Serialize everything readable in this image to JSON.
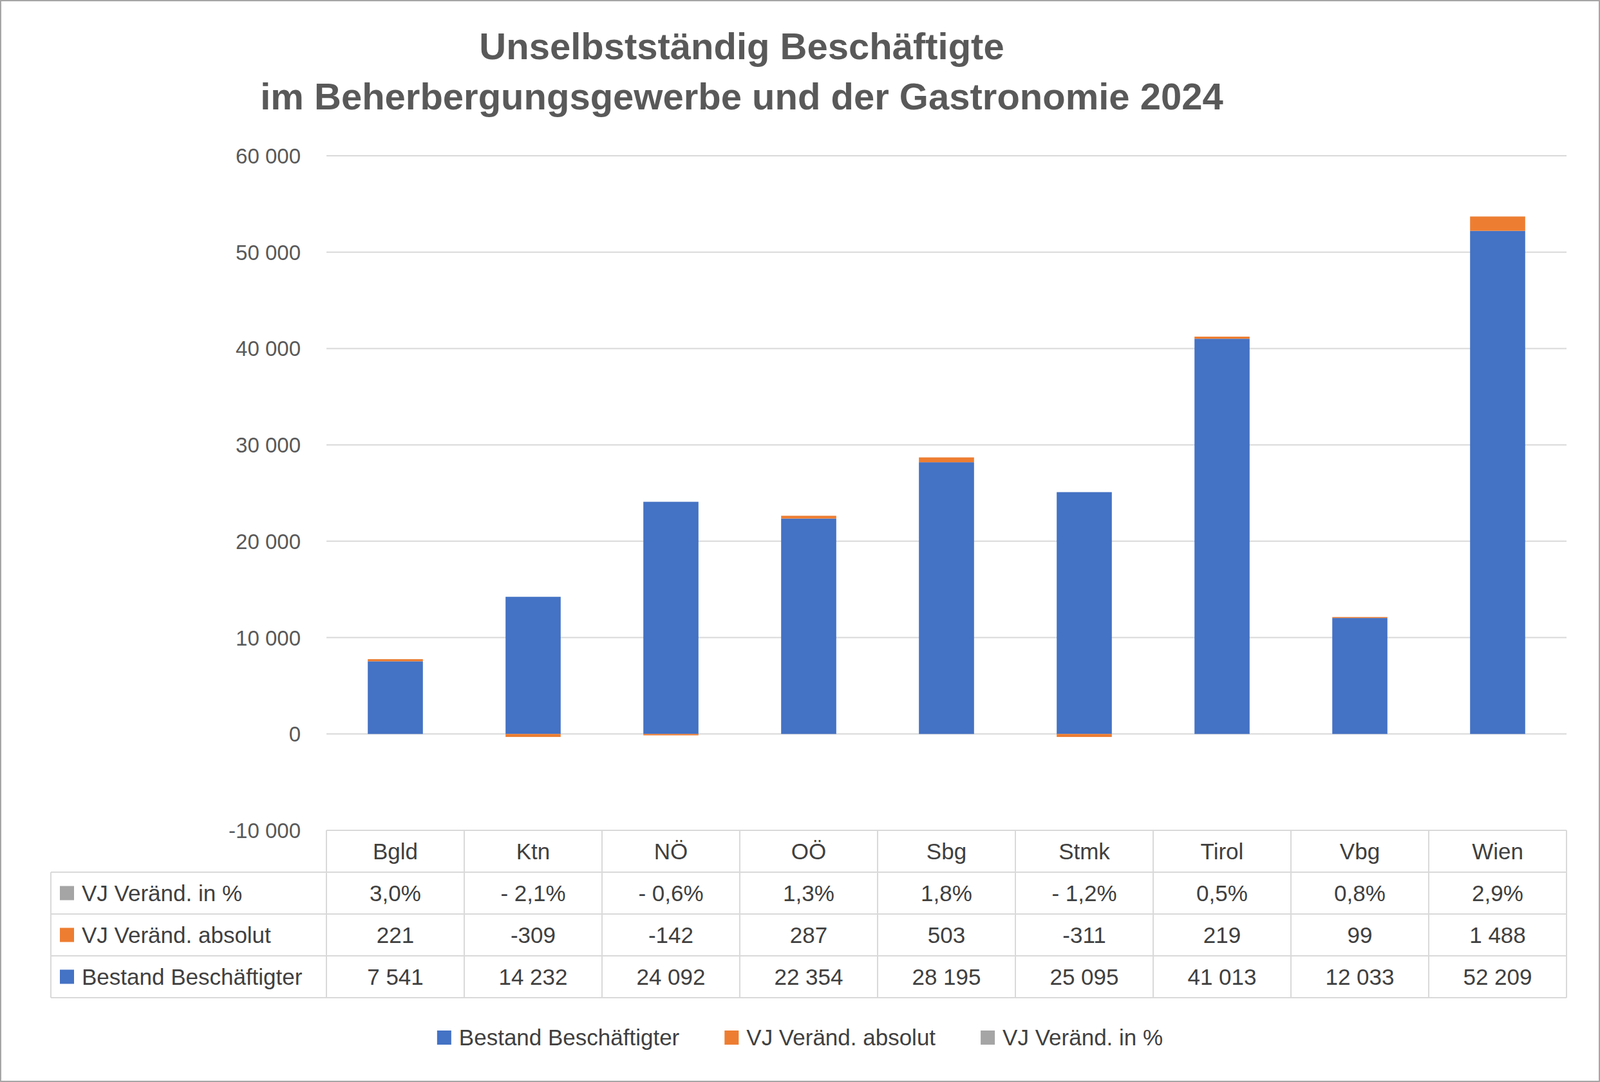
{
  "chart_data": {
    "type": "bar",
    "stacked": true,
    "grid": true,
    "legend": "bottom",
    "title": "Unselbstständig Beschäftigte\nim Beherbergungsgewerbe und der Gastronomie 2024",
    "categories": [
      "Bgld",
      "Ktn",
      "NÖ",
      "OÖ",
      "Sbg",
      "Stmk",
      "Tirol",
      "Vbg",
      "Wien"
    ],
    "series": [
      {
        "name": "Bestand Beschäftigter",
        "color": "#4472c4",
        "values": [
          7541,
          14232,
          24092,
          22354,
          28195,
          25095,
          41013,
          12033,
          52209
        ],
        "value_labels": [
          "7 541",
          "14 232",
          "24 092",
          "22 354",
          "28 195",
          "25 095",
          "41 013",
          "12 033",
          "52 209"
        ]
      },
      {
        "name": "VJ Veränd. absolut",
        "color": "#ed7d31",
        "values": [
          221,
          -309,
          -142,
          287,
          503,
          -311,
          219,
          99,
          1488
        ],
        "value_labels": [
          "221",
          "-309",
          "-142",
          "287",
          "503",
          "-311",
          "219",
          "99",
          "1 488"
        ]
      },
      {
        "name": "VJ Veränd. in %",
        "color": "#a5a5a5",
        "values": [
          3.0,
          -2.1,
          -0.6,
          1.3,
          1.8,
          -1.2,
          0.5,
          0.8,
          2.9
        ],
        "value_labels": [
          "3,0%",
          "- 2,1%",
          "- 0,6%",
          "1,3%",
          "1,8%",
          "- 1,2%",
          "0,5%",
          "0,8%",
          "2,9%"
        ]
      }
    ],
    "ylim": [
      -10000,
      60000
    ],
    "yticks": [
      {
        "value": -10000,
        "label": "-10 000"
      },
      0,
      {
        "value": 10000,
        "label": "10 000"
      },
      {
        "value": 20000,
        "label": "20 000"
      },
      {
        "value": 30000,
        "label": "30 000"
      },
      {
        "value": 40000,
        "label": "40 000"
      },
      {
        "value": 50000,
        "label": "50 000"
      },
      {
        "value": 60000,
        "label": "60 000"
      }
    ]
  }
}
